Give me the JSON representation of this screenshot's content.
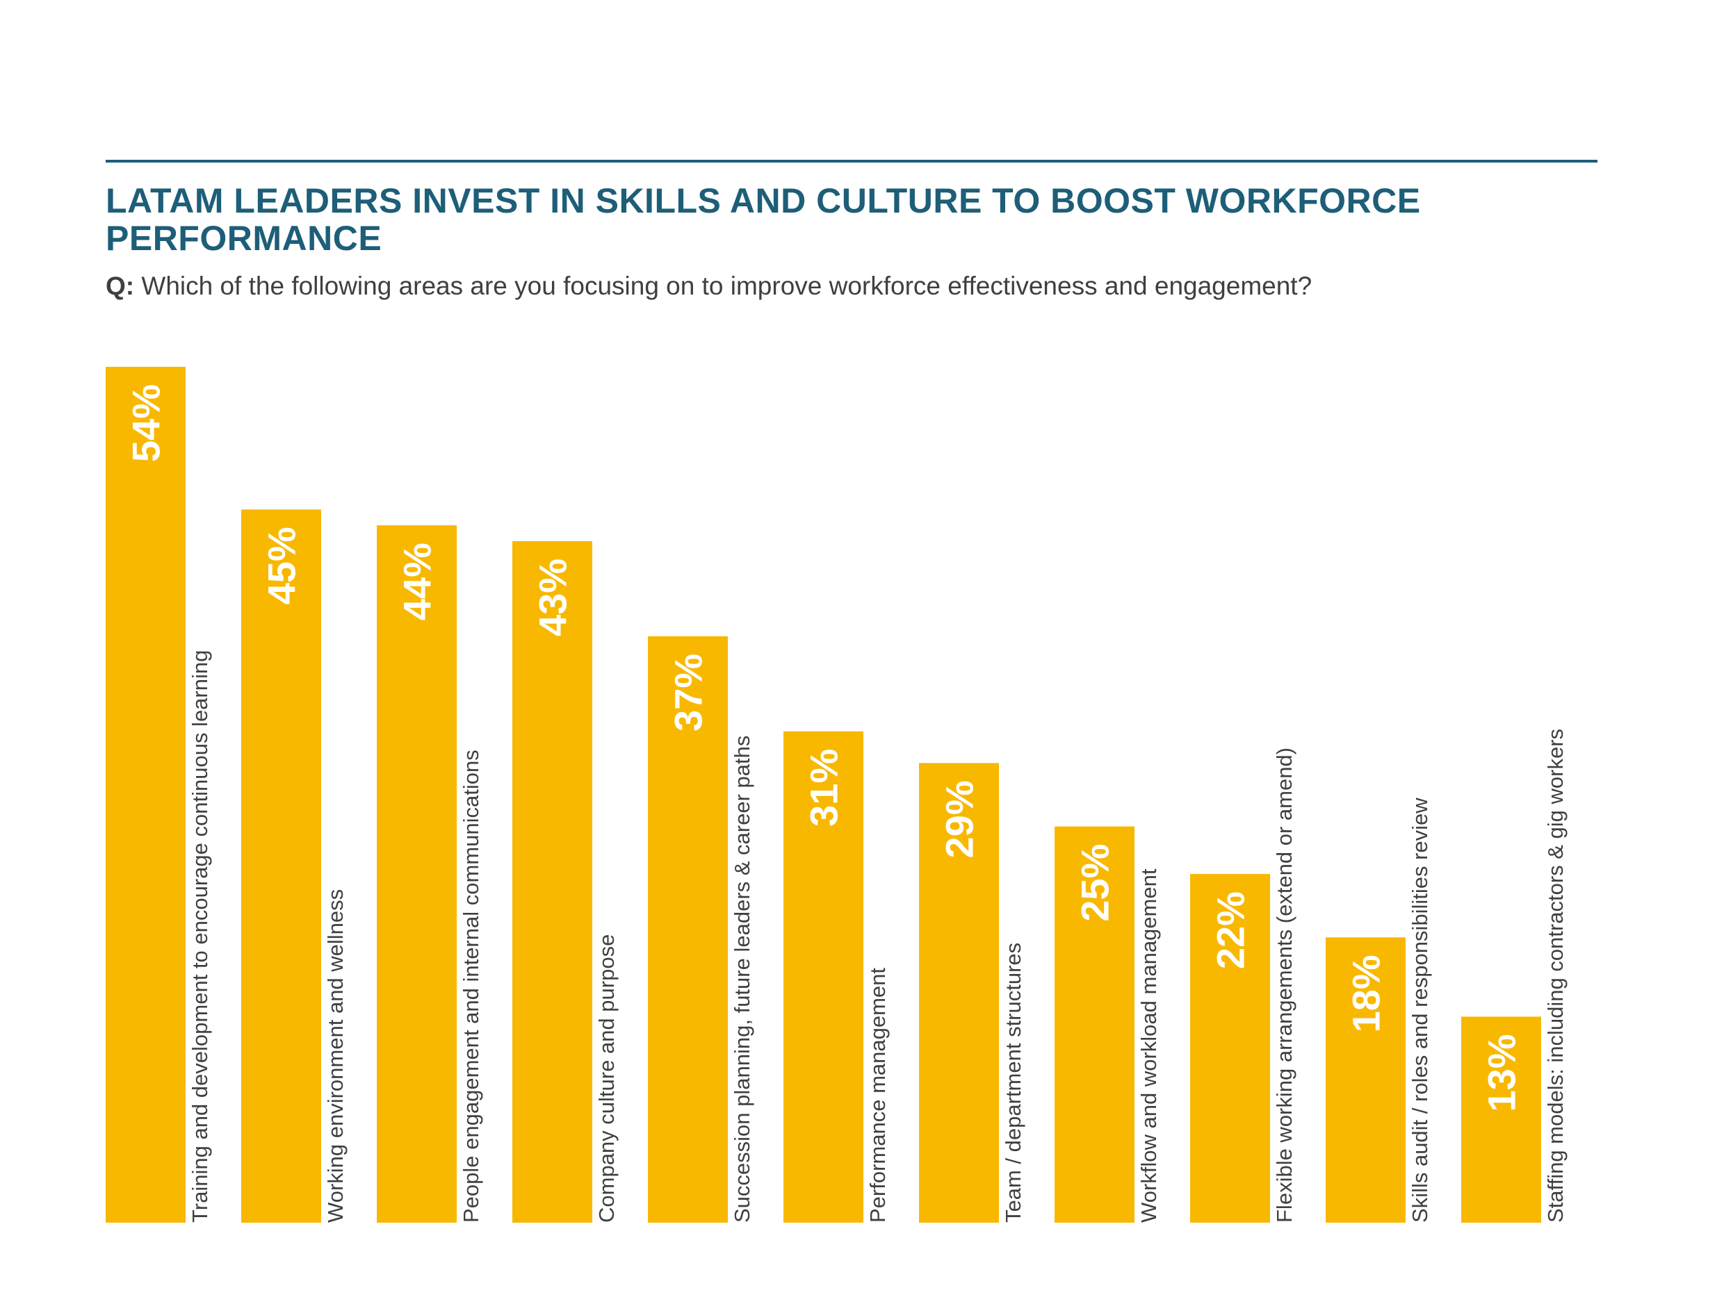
{
  "header": {
    "title": "LATAM LEADERS INVEST IN SKILLS AND CULTURE TO BOOST WORKFORCE PERFORMANCE",
    "question_prefix": "Q:",
    "question": "Which of the following areas are you focusing on to improve workforce effectiveness and engagement?"
  },
  "colors": {
    "bar": "#f8b800",
    "title": "#1d5e78",
    "rule": "#1d5e78",
    "text": "#3f3f3f",
    "value_label": "#ffffff"
  },
  "chart_data": {
    "type": "bar",
    "orientation": "vertical",
    "categories": [
      "Training and development to encourage continuous learning",
      "Working environment and wellness",
      "People engagement and internal communications",
      "Company culture and purpose",
      "Succession planning, future leaders & career paths",
      "Performance management",
      "Team / department structures",
      "Workflow and workload management",
      "Flexible working arrangements (extend or amend)",
      "Skills audit / roles and responsibilities review",
      "Staffing models: including contractors & gig workers"
    ],
    "values": [
      54,
      45,
      44,
      43,
      37,
      31,
      29,
      25,
      22,
      18,
      13
    ],
    "value_labels": [
      "54%",
      "45%",
      "44%",
      "43%",
      "37%",
      "31%",
      "29%",
      "25%",
      "22%",
      "18%",
      "13%"
    ],
    "unit": "%",
    "ylim": [
      0,
      54
    ],
    "grid": false,
    "legend": "none",
    "value_label_position": "inside-top, rotated vertical",
    "category_label_position": "right of bar, rotated vertical"
  }
}
